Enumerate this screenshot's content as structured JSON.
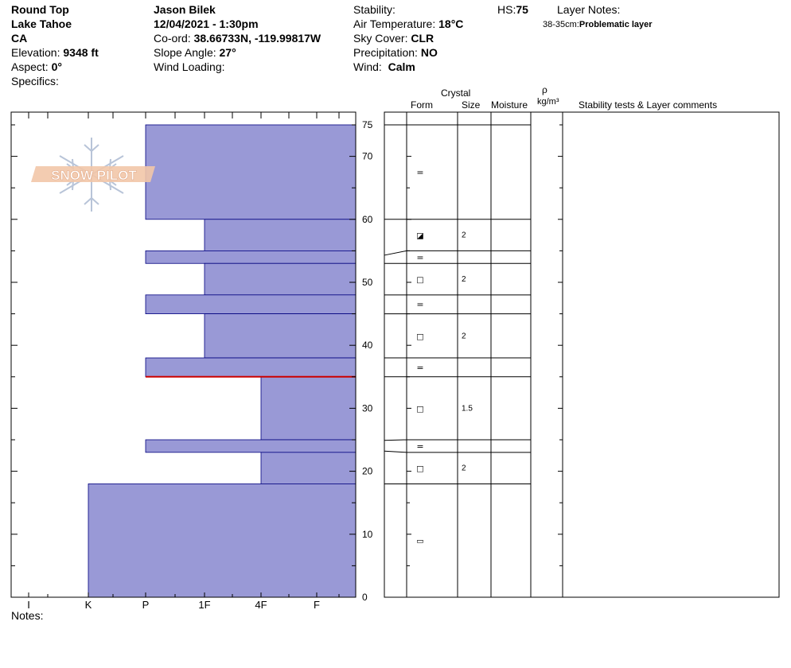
{
  "header": {
    "location": "Round Top",
    "range": "Lake Tahoe",
    "state": "CA",
    "elevation_label": "Elevation:",
    "elevation_value": "9348 ft",
    "aspect_label": "Aspect:",
    "aspect_value": "0°",
    "specifics_label": "Specifics:",
    "observer": "Jason Bilek",
    "datetime": "12/04/2021 - 1:30pm",
    "coord_label": "Co-ord:",
    "coord_value": "38.66733N, -119.99817W",
    "slope_label": "Slope Angle:",
    "slope_value": "27°",
    "wind_loading_label": "Wind Loading:",
    "stability_label": "Stability:",
    "air_temp_label": "Air Temperature:",
    "air_temp_value": "18°C",
    "sky_label": "Sky Cover:",
    "sky_value": "CLR",
    "precip_label": "Precipitation:",
    "precip_value": "NO",
    "wind_label": "Wind:",
    "wind_value": "Calm",
    "hs_label": "HS:",
    "hs_value": "75",
    "layer_notes_label": "Layer Notes:",
    "layer_note_range": "38-35cm:",
    "layer_note_text": "Problematic layer"
  },
  "columns": {
    "crystal": "Crystal",
    "form": "Form",
    "size": "Size",
    "moisture": "Moisture",
    "rho": "ρ",
    "density_unit": "kg/m³",
    "stability": "Stability tests & Layer comments"
  },
  "logo": {
    "text": "SNOW PILOT"
  },
  "notes_label": "Notes:",
  "colors": {
    "fill": "#9999d6",
    "edge": "#00007f",
    "marker": "#cc0000"
  },
  "chart_data": {
    "type": "bar",
    "orientation": "horizontal",
    "x_categories": [
      "I",
      "K",
      "P",
      "1F",
      "4F",
      "F"
    ],
    "y_ticks": [
      0,
      10,
      20,
      30,
      40,
      50,
      60,
      70,
      75
    ],
    "ylim": [
      0,
      75
    ],
    "hardness_scale": {
      "F": 0,
      "4F": 1,
      "1F": 2,
      "P": 3,
      "K": 4,
      "I": 5
    },
    "layers": [
      {
        "top": 75,
        "bottom": 60,
        "hardness": "P",
        "form": "=",
        "size": ""
      },
      {
        "top": 60,
        "bottom": 55,
        "hardness": "1F",
        "form": "◪",
        "size": "2"
      },
      {
        "top": 55,
        "bottom": 53,
        "hardness": "P",
        "form": "=",
        "size": ""
      },
      {
        "top": 53,
        "bottom": 48,
        "hardness": "1F",
        "form": "□",
        "size": "2"
      },
      {
        "top": 48,
        "bottom": 45,
        "hardness": "P",
        "form": "=",
        "size": ""
      },
      {
        "top": 45,
        "bottom": 38,
        "hardness": "1F",
        "form": "□",
        "size": "2"
      },
      {
        "top": 38,
        "bottom": 35,
        "hardness": "P",
        "form": "=",
        "size": ""
      },
      {
        "top": 35,
        "bottom": 25,
        "hardness": "4F",
        "form": "□",
        "size": "1.5"
      },
      {
        "top": 25,
        "bottom": 23,
        "hardness": "P",
        "form": "=",
        "size": ""
      },
      {
        "top": 23,
        "bottom": 18,
        "hardness": "4F",
        "form": "□",
        "size": "2"
      },
      {
        "top": 18,
        "bottom": 0,
        "hardness": "K",
        "form": "▭",
        "size": ""
      }
    ],
    "problem_layer": 35
  }
}
